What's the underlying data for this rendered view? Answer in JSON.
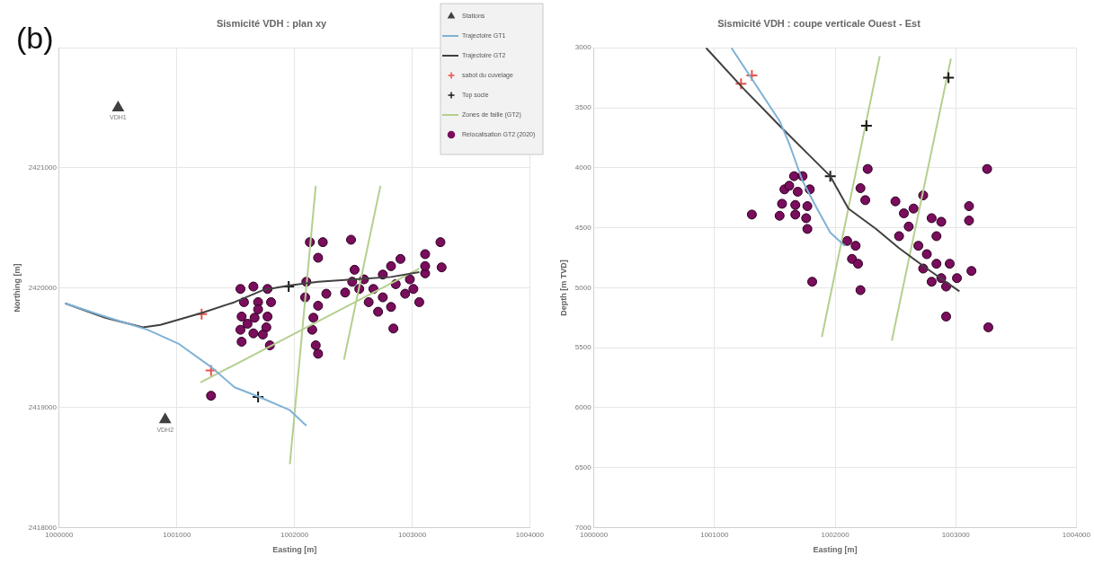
{
  "chart_data": [
    {
      "type": "scatter",
      "title": "Sismicité VDH : plan xy",
      "xlabel": "Easting [m]",
      "ylabel": "Northing [m]",
      "xlim": [
        1000000,
        1004000
      ],
      "xticks": [
        1000000,
        1001000,
        1002000,
        1003000,
        1004000
      ],
      "ylim": [
        2418000,
        2422000
      ],
      "yticks": [
        2418000,
        2419000,
        2420000,
        2421000,
        {
          "value": 2422000,
          "label": null
        }
      ],
      "grid": true,
      "legend": "top right",
      "annotations": [
        "(b)",
        {
          "text": "VDH1",
          "x": 1000500,
          "y": 2421500
        },
        {
          "text": "VDH2",
          "x": 1000900,
          "y": 2418900
        }
      ],
      "series": [
        {
          "name": "Stations",
          "type": "scatter",
          "marker": "triangle",
          "color": "#404040",
          "x": [
            1000500,
            1000900
          ],
          "values": [
            2421500,
            2418900
          ]
        },
        {
          "name": "Trajectoire GT1",
          "type": "line",
          "marker": "none",
          "color": "#7fb2d5",
          "x": [
            1000050,
            1000390,
            1000750,
            1001020,
            1001290,
            1001490,
            1001700,
            1001960,
            1002100
          ],
          "values": [
            2419870,
            2419760,
            2419650,
            2419530,
            2419340,
            2419170,
            2419090,
            2418980,
            2418850
          ]
        },
        {
          "name": "Trajectoire GT2",
          "type": "line",
          "marker": "none",
          "color": "#404040",
          "x": [
            1000050,
            1000390,
            1000710,
            1000860,
            1001210,
            1001490,
            1001730,
            1001960,
            1002200,
            1002510,
            1002820,
            1003060
          ],
          "values": [
            2419870,
            2419750,
            2419670,
            2419690,
            2419790,
            2419880,
            2419980,
            2420020,
            2420050,
            2420070,
            2420090,
            2420130
          ]
        },
        {
          "name": "sabot du cuvelage",
          "type": "scatter",
          "marker": "cross",
          "color": "#e8534a",
          "x": [
            1001210,
            1001290
          ],
          "values": [
            2419780,
            2419310
          ]
        },
        {
          "name": "Top socle",
          "type": "scatter",
          "marker": "cross",
          "color": "#1a1a1a",
          "x": [
            1001950,
            1001690
          ],
          "values": [
            2420010,
            2419090
          ]
        },
        {
          "name": "Zones de faille (GT2)",
          "type": "line",
          "marker": "none",
          "color": "#b5cf8f",
          "x": [
            1001960,
            1002180,
            null,
            1002420,
            1002730,
            null,
            1001200,
            1003060
          ],
          "values": [
            2418530,
            2420850,
            null,
            2419400,
            2420850,
            null,
            2419210,
            2420160
          ]
        },
        {
          "name": "Relocalisation GT2 (2020)",
          "type": "scatter",
          "marker": "circle",
          "color": "#7a0d5c",
          "x": [
            1001540,
            1001650,
            1001770,
            1001570,
            1001690,
            1001800,
            1001550,
            1001660,
            1001770,
            1001540,
            1001650,
            1001760,
            1001550,
            1001730,
            1001790,
            1001690,
            1001600,
            1002130,
            1002240,
            1002200,
            1002100,
            1002090,
            1002270,
            1002200,
            1002160,
            1002150,
            1002180,
            1002200,
            1002480,
            1002430,
            1002510,
            1002590,
            1002670,
            1002750,
            1002820,
            1002900,
            1002860,
            1002940,
            1002750,
            1002630,
            1002550,
            1002820,
            1002980,
            1002710,
            1002490,
            1002840,
            1003060,
            1003010,
            1003110,
            1003240,
            1003110,
            1003250,
            1003110,
            1001290
          ],
          "values": [
            2419990,
            2420010,
            2419990,
            2419880,
            2419880,
            2419880,
            2419760,
            2419750,
            2419760,
            2419650,
            2419620,
            2419670,
            2419550,
            2419610,
            2419520,
            2419820,
            2419700,
            2420380,
            2420380,
            2420250,
            2420050,
            2419920,
            2419950,
            2419850,
            2419750,
            2419650,
            2419520,
            2419450,
            2420400,
            2419960,
            2420150,
            2420070,
            2419990,
            2420110,
            2420180,
            2420240,
            2420030,
            2419950,
            2419920,
            2419880,
            2419990,
            2419840,
            2420070,
            2419800,
            2420050,
            2419660,
            2419880,
            2419990,
            2420280,
            2420380,
            2420120,
            2420170,
            2420180,
            2419100
          ]
        }
      ]
    },
    {
      "type": "scatter",
      "title": "Sismicité VDH : coupe verticale Ouest - Est",
      "xlabel": "Easting [m]",
      "ylabel": "Depth [m TVD]",
      "xlim": [
        1000000,
        1004000
      ],
      "xticks": [
        1000000,
        1001000,
        1002000,
        1003000,
        1004000
      ],
      "ylim": [
        7000,
        3000
      ],
      "yticks": [
        3000,
        3500,
        4000,
        4500,
        5000,
        5500,
        6000,
        6500,
        7000
      ],
      "grid": true,
      "series": [
        {
          "type": "line",
          "marker": "none",
          "color": "#7fb2d5",
          "x": [
            1001140,
            1001540,
            1001620,
            1001730,
            1001850,
            1001960,
            1002080
          ],
          "values": [
            3000,
            3610,
            3800,
            4110,
            4340,
            4540,
            4650
          ]
        },
        {
          "type": "line",
          "marker": "none",
          "color": "#404040",
          "x": [
            1000930,
            1001240,
            1001540,
            1001810,
            1001960,
            1002110,
            1002340,
            1002530,
            1002760,
            1003030
          ],
          "values": [
            3000,
            3340,
            3650,
            3920,
            4070,
            4340,
            4510,
            4670,
            4840,
            5030
          ]
        },
        {
          "type": "scatter",
          "marker": "cross",
          "color": "#e8534a",
          "x": [
            1001220,
            1001310
          ],
          "values": [
            3300,
            3230
          ]
        },
        {
          "type": "scatter",
          "marker": "cross",
          "color": "#1a1a1a",
          "x": [
            1001960,
            1002260,
            1002940
          ],
          "values": [
            4070,
            3650,
            3250
          ]
        },
        {
          "type": "line",
          "marker": "none",
          "color": "#b5cf8f",
          "x": [
            1001890,
            1002370,
            null,
            1002470,
            1002960
          ],
          "values": [
            5410,
            3070,
            null,
            5440,
            3090
          ]
        },
        {
          "type": "scatter",
          "marker": "circle",
          "color": "#7a0d5c",
          "x": [
            1001660,
            1001730,
            1001580,
            1001690,
            1001790,
            1001560,
            1001670,
            1001770,
            1001540,
            1001670,
            1001760,
            1001620,
            1001770,
            1001310,
            1001810,
            1002100,
            1002170,
            1002140,
            1002190,
            1002210,
            1002270,
            1002210,
            1002250,
            1002500,
            1002570,
            1002610,
            1002530,
            1002690,
            1002760,
            1002840,
            1002880,
            1002800,
            1002920,
            1002840,
            1002800,
            1002880,
            1002730,
            1002650,
            1002950,
            1002730,
            1002920,
            1003270,
            1003110,
            1003110,
            1003260,
            1003010,
            1003130
          ],
          "values": [
            4070,
            4070,
            4180,
            4200,
            4180,
            4300,
            4310,
            4320,
            4400,
            4390,
            4420,
            4150,
            4510,
            4390,
            4950,
            4610,
            4650,
            4760,
            4800,
            5020,
            4010,
            4170,
            4270,
            4280,
            4380,
            4490,
            4570,
            4650,
            4720,
            4800,
            4920,
            4950,
            4990,
            4570,
            4420,
            4450,
            4230,
            4340,
            4800,
            4840,
            5240,
            5330,
            4320,
            4440,
            4010,
            4920,
            4860
          ]
        }
      ]
    }
  ]
}
